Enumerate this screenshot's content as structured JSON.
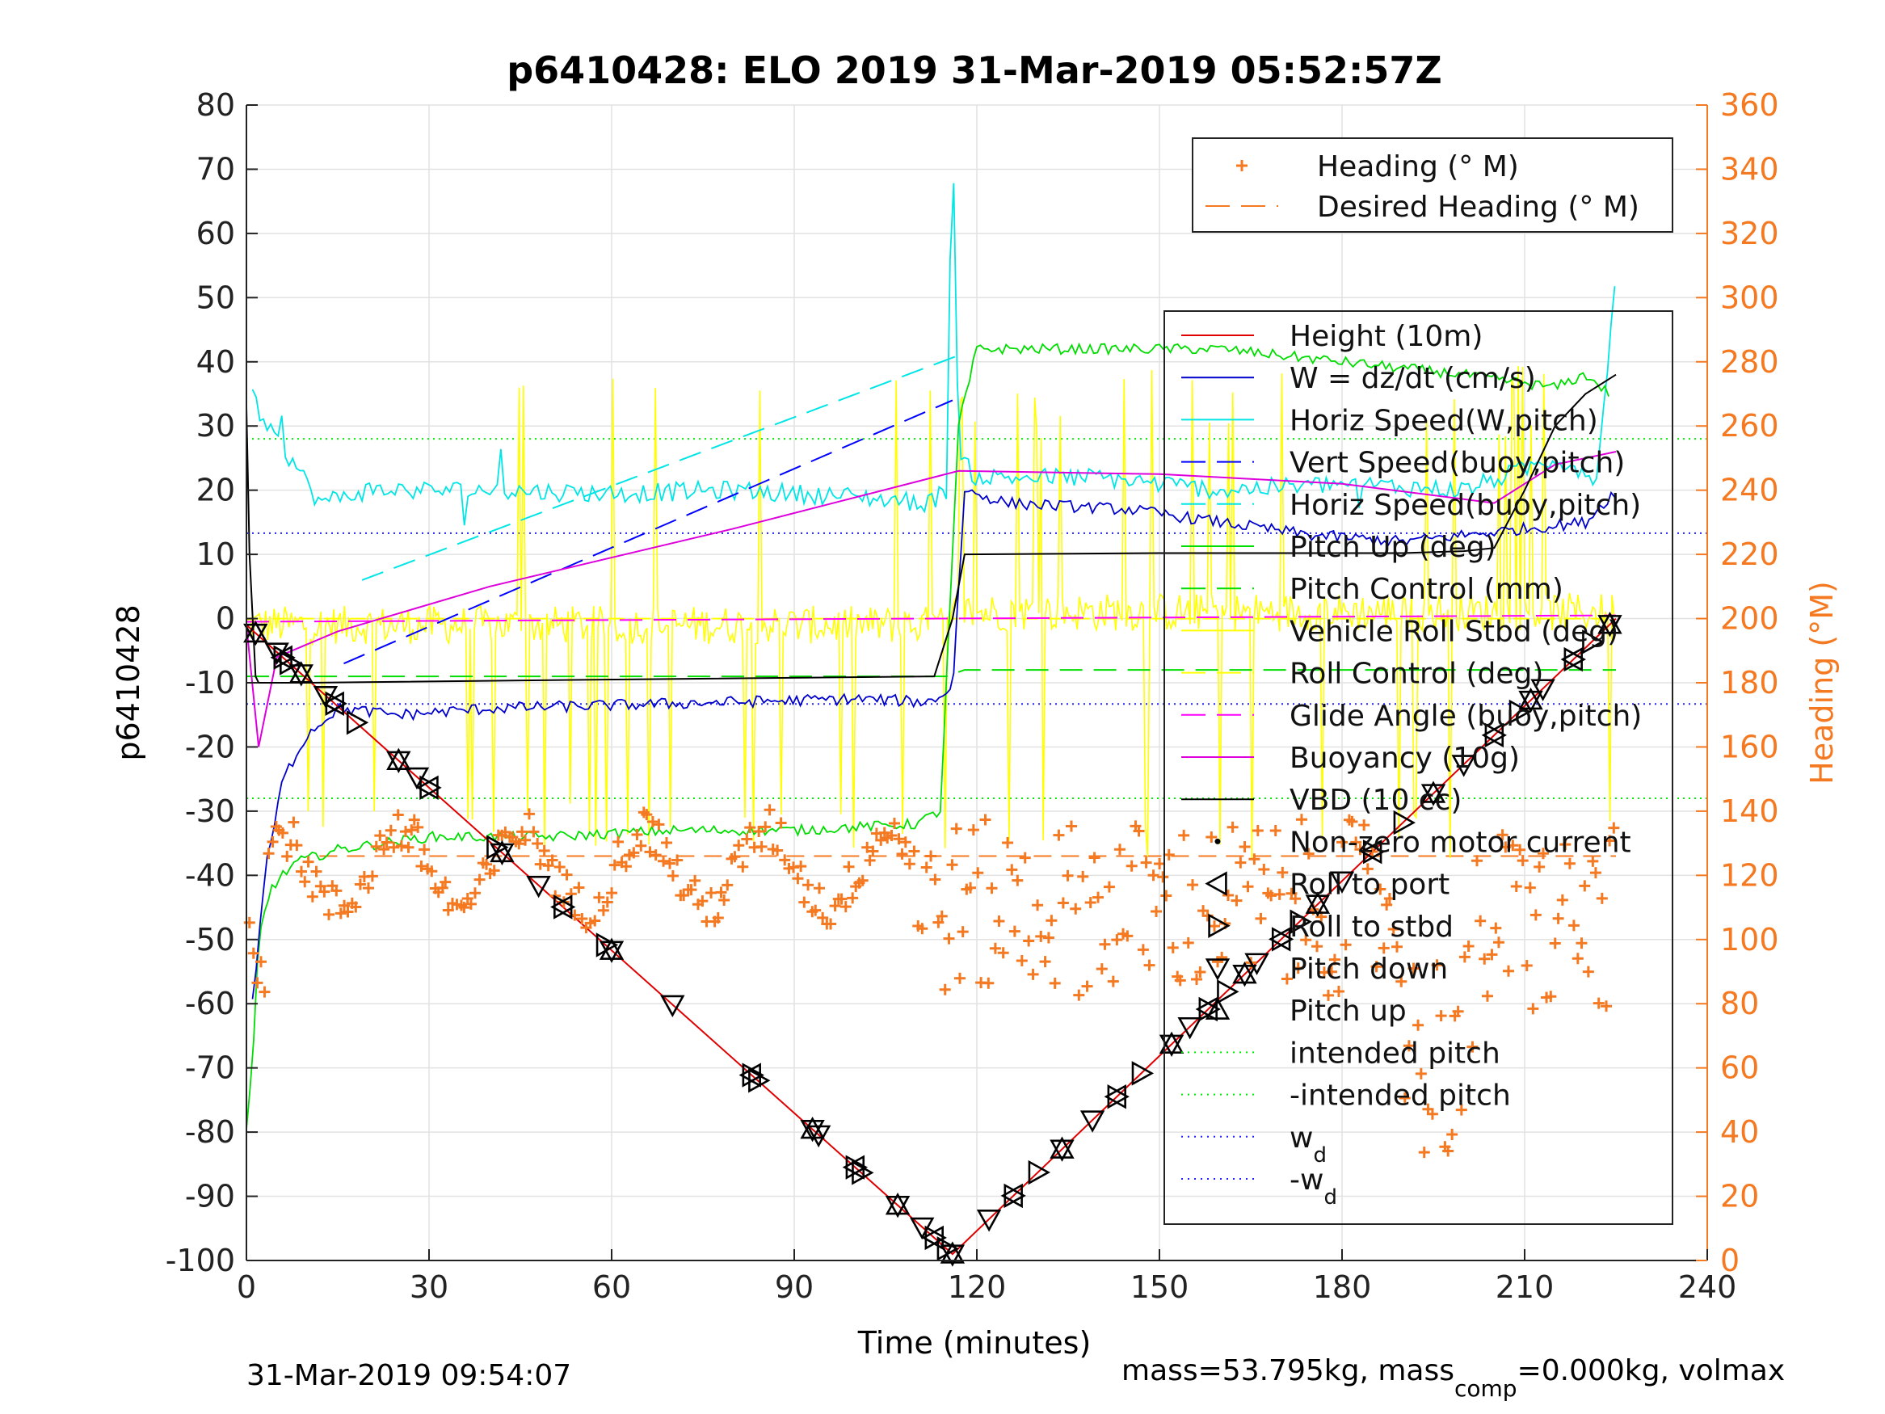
{
  "chart_data": {
    "type": "line",
    "title": "p6410428: ELO 2019 31-Mar-2019 05:52:57Z",
    "xlabel": "Time (minutes)",
    "ylabel_left": "p6410428",
    "ylabel_right": "Heading (°M)",
    "xlim": [
      0,
      240
    ],
    "ylim_left": [
      -100,
      80
    ],
    "ylim_right": [
      0,
      360
    ],
    "x_ticks": [
      0,
      30,
      60,
      90,
      120,
      150,
      180,
      210,
      240
    ],
    "y_ticks_left": [
      80,
      70,
      60,
      50,
      40,
      30,
      20,
      10,
      0,
      -10,
      -20,
      -30,
      -40,
      -50,
      -60,
      -70,
      -80,
      -90,
      -100
    ],
    "y_ticks_right": [
      360,
      340,
      320,
      300,
      280,
      260,
      240,
      220,
      200,
      180,
      160,
      140,
      120,
      100,
      80,
      60,
      40,
      20,
      0
    ],
    "grid": true,
    "footer_left": "31-Mar-2019 09:54:07",
    "footer_right_a": "mass=53.795kg, mass",
    "footer_right_sub": "comp",
    "footer_right_b": "=0.000kg, volmax",
    "colors": {
      "height": "#e00000",
      "w": "#0000cc",
      "horiz": "#00e5e5",
      "vert_buoy": "#0000ff",
      "pitch": "#00dd00",
      "roll": "#ffff00",
      "glide": "#ff00ff",
      "buoyancy": "#dd00dd",
      "vbd": "#000000",
      "heading": "#f47920",
      "intended": "#00ee00",
      "wd": "#2020ff"
    },
    "legend_top": [
      {
        "label": "Heading (° M)",
        "style": "plus",
        "color": "#f47920"
      },
      {
        "label": "Desired Heading (° M)",
        "style": "dash",
        "color": "#f47920"
      }
    ],
    "legend_main": [
      {
        "label": "Height (10m)",
        "style": "solid",
        "color": "#e00000"
      },
      {
        "label": "W = dz/dt (cm/s)",
        "style": "solid",
        "color": "#0000cc"
      },
      {
        "label": "Horiz Speed(W,pitch)",
        "style": "solid",
        "color": "#00e5e5"
      },
      {
        "label": "Vert Speed(buoy,pitch)",
        "style": "dash",
        "color": "#0000ff"
      },
      {
        "label": "Horiz Speed(buoy,pitch)",
        "style": "dash",
        "color": "#00e5e5"
      },
      {
        "label": "Pitch Up (deg)",
        "style": "solid",
        "color": "#00dd00"
      },
      {
        "label": "Pitch Control (mm)",
        "style": "dash",
        "color": "#00dd00"
      },
      {
        "label": "Vehicle Roll Stbd (deg)",
        "style": "solid",
        "color": "#ffff00"
      },
      {
        "label": "Roll Control (deg)",
        "style": "dash",
        "color": "#ffff00"
      },
      {
        "label": "Glide Angle (buoy,pitch)",
        "style": "dash",
        "color": "#ff00ff"
      },
      {
        "label": "Buoyancy (10g)",
        "style": "solid",
        "color": "#dd00dd"
      },
      {
        "label": "VBD (10 cc)",
        "style": "solid",
        "color": "#000000"
      },
      {
        "label": "Non-zero motor current",
        "style": "dot",
        "color": "#000000"
      },
      {
        "label": "Roll to port",
        "style": "tri-left",
        "color": "#000000"
      },
      {
        "label": "Roll to stbd",
        "style": "tri-right",
        "color": "#000000"
      },
      {
        "label": "Pitch down",
        "style": "tri-down",
        "color": "#000000"
      },
      {
        "label": "Pitch up",
        "style": "tri-up",
        "color": "#000000"
      },
      {
        "label": "intended pitch",
        "style": "dotted",
        "color": "#00ee00"
      },
      {
        "label": "-intended pitch",
        "style": "dotted",
        "color": "#00ee00"
      },
      {
        "label": "w",
        "sub": "d",
        "style": "dotted",
        "color": "#2020ff"
      },
      {
        "label": "-w",
        "sub": "d",
        "style": "dotted",
        "color": "#2020ff"
      }
    ],
    "reference_lines": {
      "intended_pitch": 28,
      "neg_intended_pitch": -28,
      "wd": 13.3,
      "neg_wd": -13.3,
      "desired_heading_deg": 126
    },
    "series": {
      "height": {
        "x": [
          0,
          116,
          225
        ],
        "y": [
          -1,
          -99,
          0
        ]
      },
      "vbd": {
        "x": [
          0,
          0.5,
          1.5,
          2,
          10,
          60,
          113,
          116,
          118,
          150,
          190,
          200,
          205,
          210,
          215,
          220,
          225
        ],
        "y": [
          33,
          10,
          -9,
          -10,
          -10,
          -9.5,
          -9,
          0,
          10,
          10.2,
          10.2,
          10.5,
          11,
          20,
          30,
          35,
          38
        ]
      },
      "buoyancy": {
        "x": [
          0,
          2,
          5,
          15,
          40,
          80,
          117,
          150,
          180,
          205,
          215,
          225
        ],
        "y": [
          -1,
          -20,
          -6,
          -2,
          5,
          14,
          23,
          22.5,
          21,
          18,
          24,
          26
        ]
      },
      "w": {
        "x": [
          1,
          3,
          6,
          10,
          15,
          25,
          40,
          60,
          80,
          100,
          112,
          116,
          118,
          125,
          145,
          160,
          175,
          190,
          210,
          220,
          225
        ],
        "y": [
          -60,
          -40,
          -25,
          -18,
          -14,
          -15,
          -14,
          -13.5,
          -13,
          -12.5,
          -13,
          -11,
          20,
          18,
          17,
          15,
          13,
          12,
          14,
          15,
          20
        ]
      },
      "horiz_w_pitch": {
        "x": [
          1,
          3,
          8,
          12,
          20,
          40,
          60,
          80,
          100,
          112,
          115,
          116,
          117,
          120,
          140,
          160,
          180,
          200,
          215,
          222,
          225
        ],
        "y": [
          35,
          30,
          24,
          18,
          20,
          20,
          19.5,
          20,
          19,
          18,
          20,
          80,
          25,
          22,
          22,
          20,
          21,
          20,
          25,
          22,
          55
        ]
      },
      "pitch": {
        "x": [
          0,
          1,
          2,
          4,
          8,
          15,
          30,
          50,
          70,
          90,
          110,
          114,
          117,
          120,
          140,
          160,
          180,
          200,
          215,
          220,
          224
        ],
        "y": [
          -80,
          -70,
          -50,
          -42,
          -38,
          -36,
          -34,
          -34,
          -33,
          -33,
          -32,
          -30,
          30,
          42,
          42,
          42,
          40,
          38,
          36,
          38,
          35
        ]
      },
      "vert_buoy_pitch": {
        "x": [
          16,
          116
        ],
        "y": [
          -7,
          34
        ]
      },
      "horiz_buoy_pitch": {
        "x": [
          19,
          117
        ],
        "y": [
          6,
          41
        ]
      },
      "glide_angle": {
        "x": [
          0,
          225
        ],
        "y": [
          -0.5,
          0.5
        ]
      },
      "pitch_control": {
        "x": [
          0,
          115,
          118,
          225
        ],
        "y": [
          -9,
          -9,
          -8,
          -8
        ]
      },
      "roll": {
        "x": [
          0,
          225
        ],
        "y": [
          0,
          0
        ],
        "note": "noisy with spikes between -35 and +40"
      },
      "heading_deg": {
        "x_range": [
          0,
          225
        ],
        "center_deg": 126,
        "notes": "scatter of orange plus markers roughly 60-150 deg, dipping to ~20 deg near 200 min"
      }
    }
  }
}
